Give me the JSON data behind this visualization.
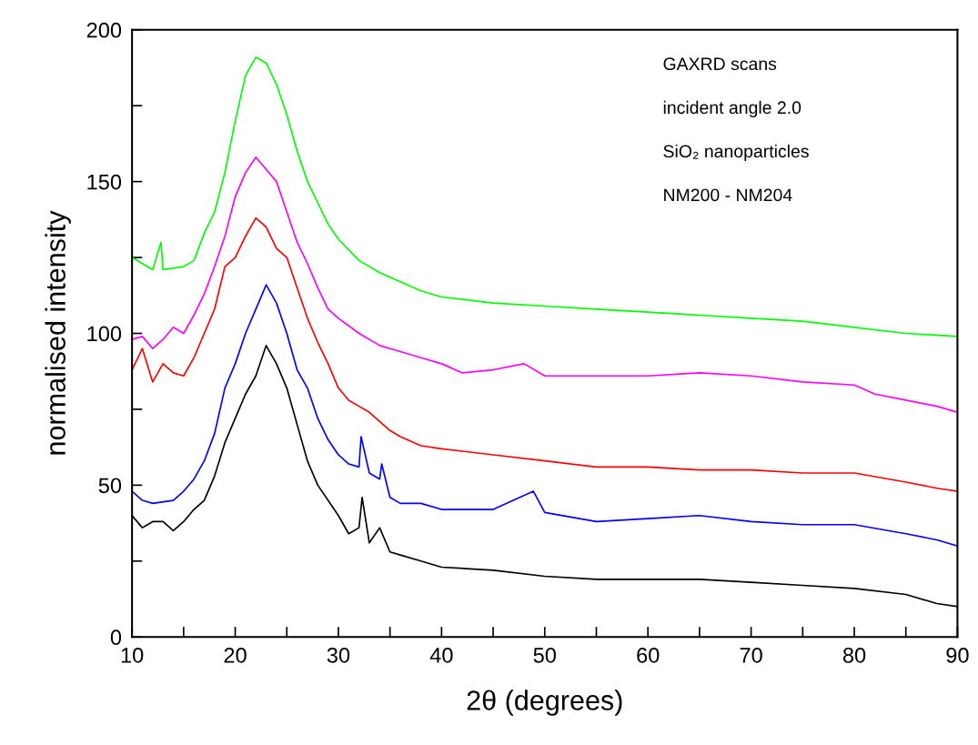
{
  "chart_data": {
    "type": "line",
    "xlabel": "2θ (degrees)",
    "ylabel": "normalised intensity",
    "xlim": [
      10,
      90
    ],
    "xticks": [
      10,
      {
        "value": 15,
        "label": null
      },
      20,
      {
        "value": 25,
        "label": null
      },
      30,
      {
        "value": 35,
        "label": null
      },
      40,
      {
        "value": 45,
        "label": null
      },
      50,
      {
        "value": 55,
        "label": null
      },
      60,
      {
        "value": 65,
        "label": null
      },
      70,
      {
        "value": 75,
        "label": null
      },
      80,
      {
        "value": 85,
        "label": null
      },
      90
    ],
    "ylim": [
      0,
      200
    ],
    "yticks": [
      0,
      {
        "value": 25,
        "label": null
      },
      50,
      {
        "value": 75,
        "label": null
      },
      100,
      {
        "value": 125,
        "label": null
      },
      150,
      {
        "value": 175,
        "label": null
      },
      200
    ],
    "grid": false,
    "marker": "none",
    "line_style": "solid",
    "annotations": [
      "GAXRD scans",
      "incident angle 2.0",
      "SiO₂ nanoparticles",
      "NM200 - NM204"
    ],
    "series": [
      {
        "color": "#00ff00",
        "x": [
          10,
          12,
          12.8,
          13,
          15,
          16,
          17,
          18,
          19,
          20,
          21,
          22,
          23,
          24,
          25,
          26,
          27,
          28,
          29,
          30,
          32,
          34,
          36,
          38,
          40,
          45,
          50,
          55,
          60,
          65,
          70,
          75,
          80,
          85,
          90
        ],
        "values": [
          125,
          121,
          130,
          121,
          122,
          124,
          133,
          140,
          153,
          170,
          185,
          191,
          189,
          182,
          172,
          160,
          150,
          143,
          136,
          131,
          124,
          120,
          117,
          114,
          112,
          110,
          109,
          108,
          107,
          106,
          105,
          104,
          102,
          100,
          99
        ]
      },
      {
        "color": "#ff00ff",
        "x": [
          10,
          11,
          12,
          13,
          14,
          15,
          16,
          17,
          18,
          19,
          20,
          21,
          22,
          23,
          24,
          25,
          26,
          27,
          28,
          29,
          30,
          32,
          34,
          36,
          38,
          40,
          42,
          45,
          48,
          50,
          55,
          60,
          65,
          70,
          75,
          80,
          82,
          85,
          88,
          90
        ],
        "values": [
          98,
          99,
          95,
          98,
          102,
          100,
          106,
          113,
          122,
          132,
          145,
          153,
          158,
          154,
          150,
          140,
          130,
          123,
          115,
          108,
          105,
          100,
          96,
          94,
          92,
          90,
          87,
          88,
          90,
          86,
          86,
          86,
          87,
          86,
          84,
          83,
          80,
          78,
          76,
          74
        ]
      },
      {
        "color": "#ff0000",
        "x": [
          10,
          11,
          12,
          13,
          14,
          15,
          16,
          17,
          18,
          19,
          20,
          21,
          22,
          23,
          24,
          25,
          26,
          27,
          28,
          29,
          30,
          31,
          32,
          33,
          34,
          35,
          36,
          38,
          40,
          45,
          50,
          55,
          60,
          65,
          70,
          75,
          80,
          85,
          88,
          90
        ],
        "values": [
          88,
          95,
          84,
          90,
          87,
          86,
          92,
          100,
          108,
          122,
          125,
          132,
          138,
          135,
          128,
          125,
          115,
          105,
          97,
          90,
          82,
          78,
          76,
          74,
          71,
          68,
          66,
          63,
          62,
          60,
          58,
          56,
          56,
          55,
          55,
          54,
          54,
          51,
          49,
          48
        ]
      },
      {
        "color": "#0000ff",
        "x": [
          10,
          11,
          12,
          14,
          15,
          16,
          17,
          18,
          19,
          20,
          21,
          22,
          23,
          24,
          25,
          26,
          27,
          28,
          29,
          30,
          31,
          32,
          32.2,
          33,
          34,
          34.2,
          35,
          36,
          38,
          40,
          45,
          48.9,
          50,
          55,
          60,
          65,
          70,
          75,
          80,
          85,
          88,
          90
        ],
        "values": [
          48,
          45,
          44,
          45,
          48,
          52,
          58,
          67,
          82,
          90,
          100,
          108,
          116,
          110,
          100,
          88,
          82,
          72,
          65,
          60,
          57,
          56,
          66,
          54,
          52,
          57,
          46,
          44,
          44,
          42,
          42,
          48,
          41,
          38,
          39,
          40,
          38,
          37,
          37,
          34,
          32,
          30
        ]
      },
      {
        "color": "#000000",
        "x": [
          10,
          11,
          12,
          13,
          14,
          15,
          16,
          17,
          18,
          19,
          20,
          21,
          22,
          23,
          24,
          25,
          26,
          27,
          28,
          29,
          30,
          31,
          32,
          32.3,
          33,
          34,
          35,
          36,
          38,
          40,
          45,
          50,
          55,
          60,
          65,
          70,
          75,
          80,
          85,
          88,
          90
        ],
        "values": [
          40,
          36,
          38,
          38,
          35,
          38,
          42,
          45,
          53,
          64,
          72,
          80,
          86,
          96,
          90,
          82,
          70,
          58,
          50,
          45,
          40,
          34,
          36,
          46,
          31,
          36,
          28,
          27,
          25,
          23,
          22,
          20,
          19,
          19,
          19,
          18,
          17,
          16,
          14,
          11,
          10
        ]
      }
    ]
  }
}
